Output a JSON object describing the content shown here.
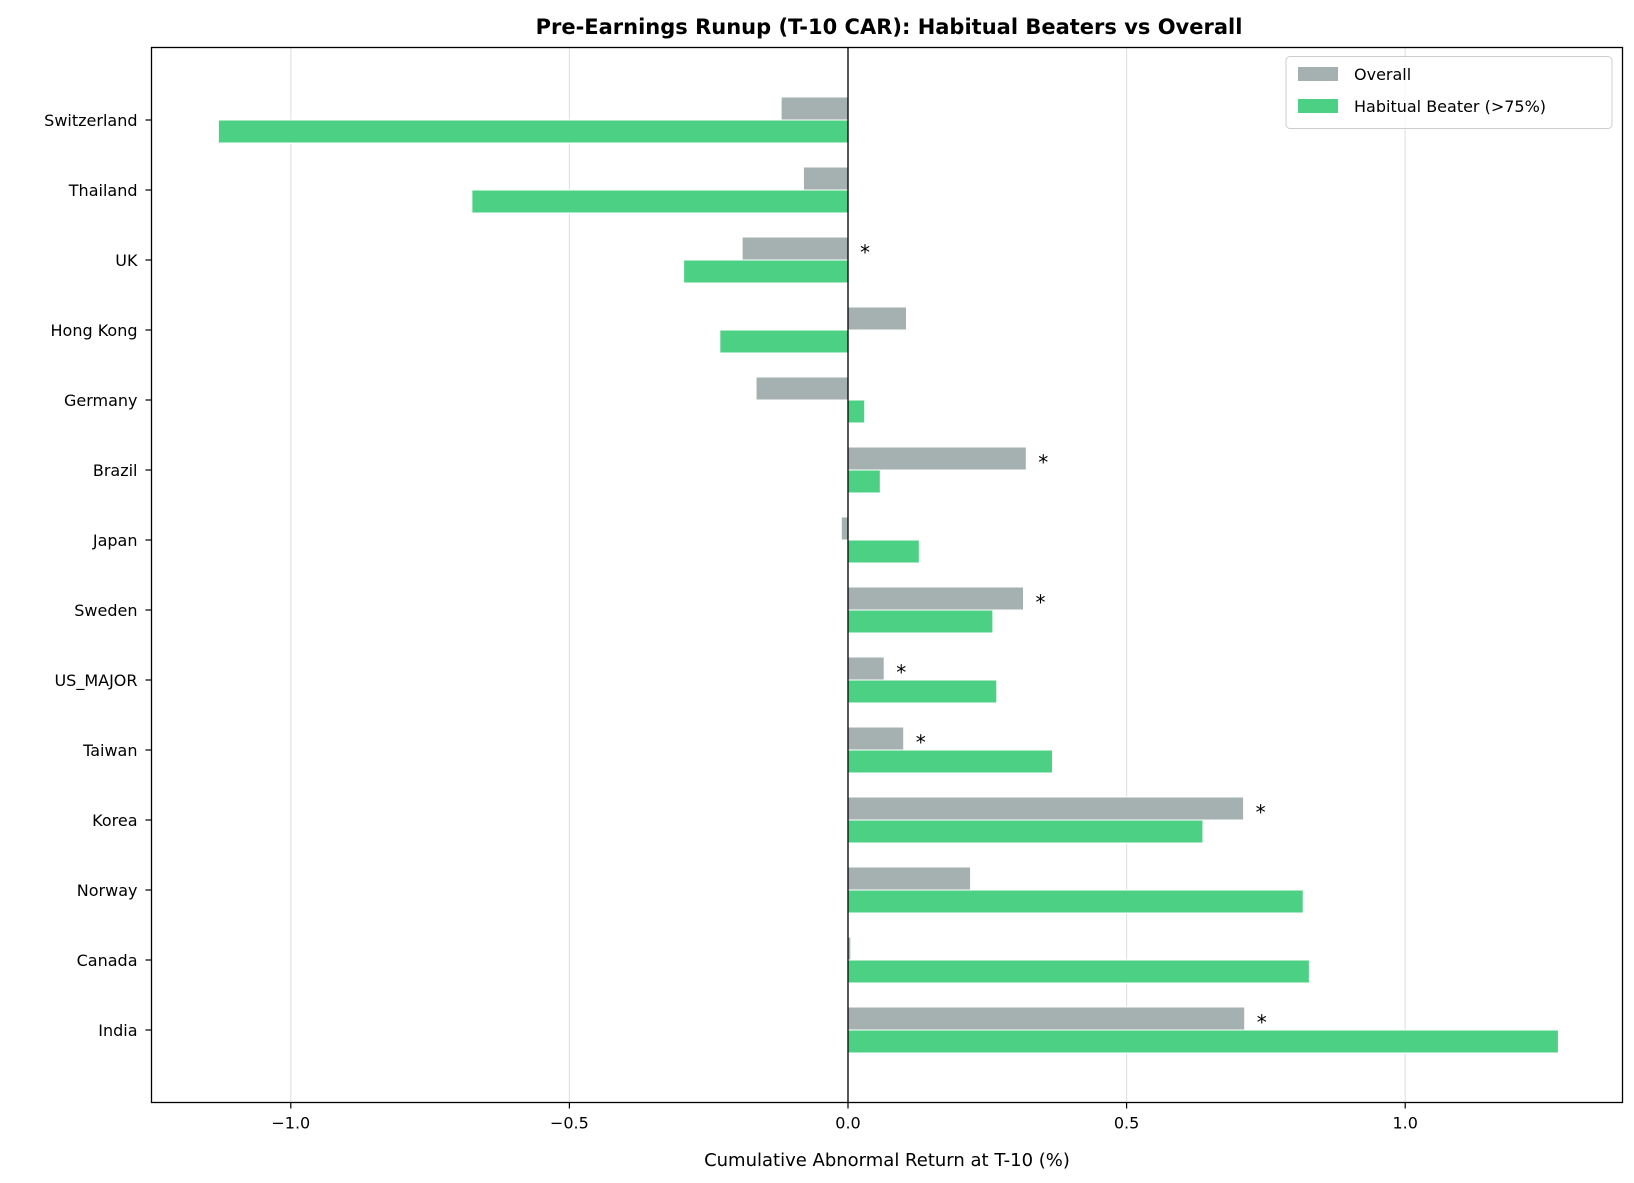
{
  "chart_data": {
    "type": "bar",
    "orientation": "horizontal",
    "title": "Pre-Earnings Runup (T-10 CAR): Habitual Beaters vs Overall",
    "xlabel": "Cumulative Abnormal Return at T-10 (%)",
    "ylabel": "",
    "xlim": [
      -1.25,
      1.39
    ],
    "xticks": [
      -1.0,
      -0.5,
      0.0,
      0.5,
      1.0
    ],
    "xtick_labels": [
      "−1.0",
      "−0.5",
      "0.0",
      "0.5",
      "1.0"
    ],
    "grid": "vertical",
    "legend_position": "top-right",
    "categories": [
      "Switzerland",
      "Thailand",
      "UK",
      "Hong Kong",
      "Germany",
      "Brazil",
      "Japan",
      "Sweden",
      "US_MAJOR",
      "Taiwan",
      "Korea",
      "Norway",
      "Canada",
      "India"
    ],
    "series": [
      {
        "name": "Overall",
        "color": "#a5b1b1",
        "values": [
          -0.12,
          -0.08,
          -0.19,
          0.105,
          -0.165,
          0.32,
          -0.012,
          0.315,
          0.065,
          0.1,
          0.71,
          0.22,
          0.005,
          0.712
        ]
      },
      {
        "name": "Habitual Beater (>75%)",
        "color": "#4cd184",
        "values": [
          -1.13,
          -0.675,
          -0.295,
          -0.23,
          0.03,
          0.058,
          0.128,
          0.26,
          0.267,
          0.367,
          0.637,
          0.817,
          0.828,
          1.275
        ]
      }
    ],
    "significance_marker": "*",
    "significant": [
      false,
      false,
      true,
      false,
      false,
      true,
      false,
      true,
      true,
      true,
      true,
      false,
      false,
      true
    ]
  }
}
